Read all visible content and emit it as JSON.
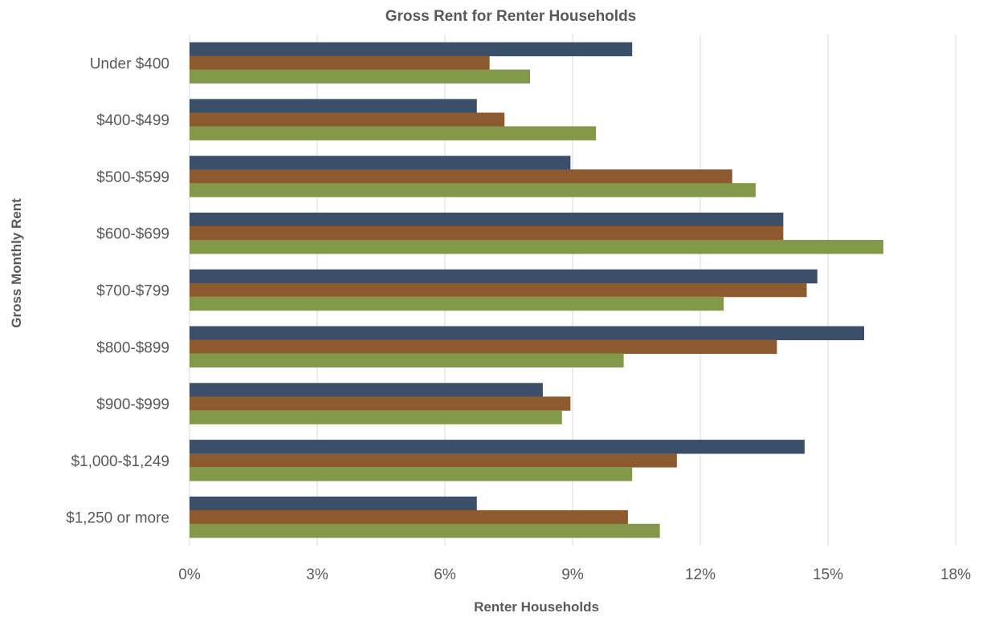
{
  "chart_data": {
    "type": "bar",
    "orientation": "horizontal",
    "title": "Gross Rent for Renter Households",
    "xlabel": "Renter Households",
    "ylabel": "Gross Monthly Rent",
    "xlim": [
      0,
      18
    ],
    "x_ticks": [
      "0%",
      "3%",
      "6%",
      "9%",
      "12%",
      "15%",
      "18%"
    ],
    "grid": true,
    "legend": "none",
    "categories": [
      "Under $400",
      "$400-$499",
      "$500-$599",
      "$600-$699",
      "$700-$799",
      "$800-$899",
      "$900-$999",
      "$1,000-$1,249",
      "$1,250 or more"
    ],
    "series": [
      {
        "color": "#3b5068",
        "values": [
          10.4,
          6.75,
          8.95,
          13.95,
          14.75,
          15.85,
          8.3,
          14.45,
          6.75
        ]
      },
      {
        "color": "#8c5a2e",
        "values": [
          7.05,
          7.4,
          12.75,
          13.95,
          14.5,
          13.8,
          8.95,
          11.45,
          10.3
        ]
      },
      {
        "color": "#83994a",
        "values": [
          8.0,
          9.55,
          13.3,
          16.3,
          12.55,
          10.2,
          8.75,
          10.4,
          11.05
        ]
      }
    ]
  }
}
